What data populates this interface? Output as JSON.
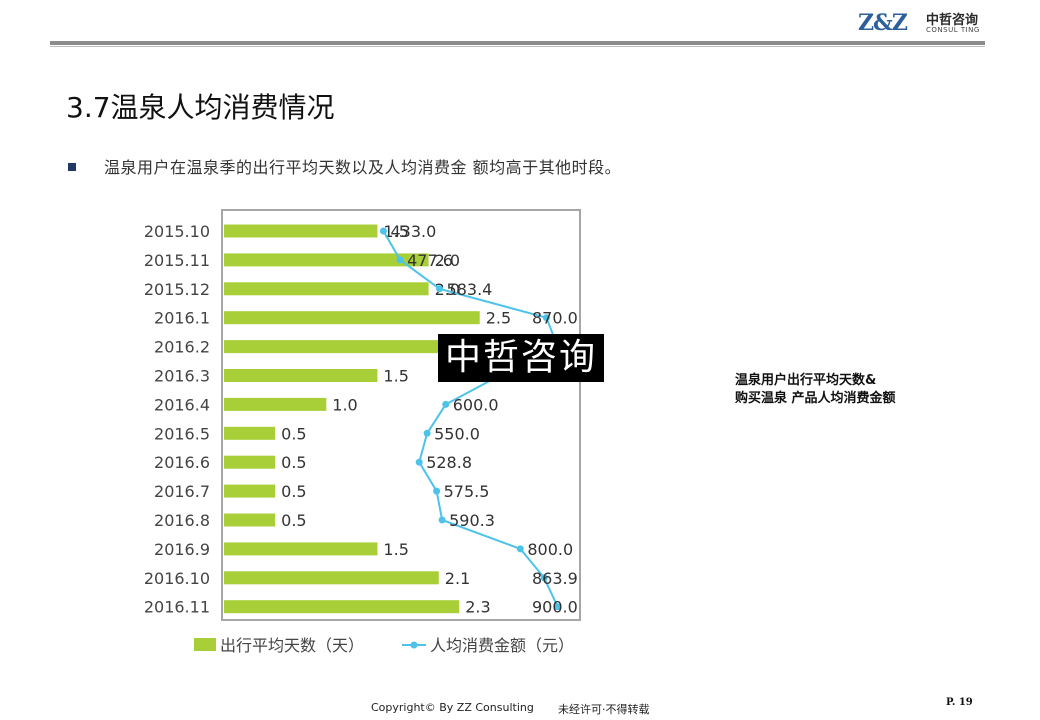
{
  "header": {
    "logo_mark": "Z&Z",
    "logo_cn": "中哲咨询",
    "logo_en": "CONSUL TING"
  },
  "title": "3.7温泉人均消费情况",
  "bullet": "温泉用户在温泉季的出行平均天数以及人均消费金 额均高于其他时段。",
  "watermark": "中哲咨询",
  "side_note": {
    "line1": "温泉用户出行平均天数&",
    "line2": "购买温泉 产品人均消费金额"
  },
  "footer": {
    "copyright": "Copyright© By  ZZ Consulting",
    "notice": "未经许可·不得转载",
    "page": "P. 19"
  },
  "colors": {
    "bar": "#a8cf38",
    "line": "#4dc3ea",
    "frame": "#a6a6a6",
    "navy": "#1f3864"
  },
  "chart_data": {
    "type": "bar+line",
    "orientation": "horizontal",
    "categories": [
      "2015.10",
      "2015.11",
      "2015.12",
      "2016.1",
      "2016.2",
      "2016.3",
      "2016.4",
      "2016.5",
      "2016.6",
      "2016.7",
      "2016.8",
      "2016.9",
      "2016.10",
      "2016.11"
    ],
    "series": [
      {
        "name": "出行平均天数（天）",
        "type": "bar",
        "values": [
          1.5,
          2.0,
          2.0,
          2.5,
          3.0,
          1.5,
          1.0,
          0.5,
          0.5,
          0.5,
          0.5,
          1.5,
          2.1,
          2.3
        ],
        "labels": [
          "1.5",
          "2.0",
          "2.0",
          "2.5",
          "",
          "1.5",
          "1.0",
          "0.5",
          "0.5",
          "0.5",
          "0.5",
          "1.5",
          "2.1",
          "2.3"
        ]
      },
      {
        "name": "人均消费金额（元）",
        "type": "line",
        "values": [
          433.0,
          477.6,
          583.4,
          870.0,
          900.0,
          745.0,
          600.0,
          550.0,
          528.8,
          575.5,
          590.3,
          800.0,
          863.9,
          900.0
        ],
        "labels": [
          "433.0",
          "477.6",
          "583.4",
          "870.0",
          "",
          "745.0",
          "600.0",
          "550.0",
          "528.8",
          "575.5",
          "590.3",
          "800.0",
          "863.9",
          "900.0"
        ]
      }
    ],
    "bar_axis_range": [
      0,
      3.5
    ],
    "line_axis_range": [
      0,
      960
    ],
    "legend_position": "bottom",
    "grid": false
  }
}
